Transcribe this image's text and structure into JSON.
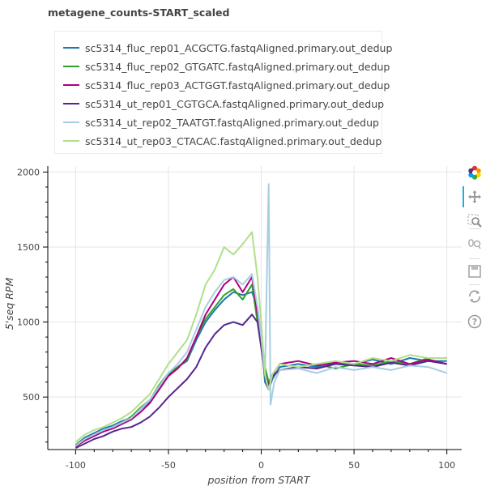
{
  "chart_data": {
    "type": "line",
    "title": "metagene_counts-START_scaled",
    "xlabel": "position from START",
    "ylabel": "5'seq RPM",
    "xlim": [
      -115,
      108
    ],
    "ylim": [
      150,
      2040
    ],
    "xticks": [
      -100,
      -50,
      0,
      50,
      100
    ],
    "yticks": [
      500,
      1000,
      1500,
      2000
    ],
    "grid": true,
    "legend_position": "top-left",
    "series": [
      {
        "name": "sc5314_fluc_rep01_ACGCTG.fastqAligned.primary.out_dedup",
        "color": "#1f78b4",
        "points": [
          [
            -100,
            180
          ],
          [
            -95,
            230
          ],
          [
            -90,
            260
          ],
          [
            -85,
            290
          ],
          [
            -80,
            310
          ],
          [
            -75,
            340
          ],
          [
            -70,
            360
          ],
          [
            -65,
            420
          ],
          [
            -60,
            470
          ],
          [
            -55,
            560
          ],
          [
            -50,
            650
          ],
          [
            -45,
            700
          ],
          [
            -40,
            740
          ],
          [
            -35,
            880
          ],
          [
            -30,
            1000
          ],
          [
            -25,
            1080
          ],
          [
            -20,
            1150
          ],
          [
            -15,
            1200
          ],
          [
            -10,
            1180
          ],
          [
            -5,
            1200
          ],
          [
            -2,
            1100
          ],
          [
            0,
            900
          ],
          [
            2,
            600
          ],
          [
            4,
            550
          ],
          [
            6,
            620
          ],
          [
            10,
            700
          ],
          [
            20,
            720
          ],
          [
            30,
            700
          ],
          [
            40,
            730
          ],
          [
            50,
            720
          ],
          [
            60,
            750
          ],
          [
            70,
            720
          ],
          [
            80,
            760
          ],
          [
            90,
            740
          ],
          [
            100,
            740
          ]
        ]
      },
      {
        "name": "sc5314_fluc_rep02_GTGATC.fastqAligned.primary.out_dedup",
        "color": "#33a02c",
        "points": [
          [
            -100,
            180
          ],
          [
            -95,
            220
          ],
          [
            -90,
            250
          ],
          [
            -85,
            280
          ],
          [
            -80,
            300
          ],
          [
            -75,
            330
          ],
          [
            -70,
            370
          ],
          [
            -65,
            430
          ],
          [
            -60,
            480
          ],
          [
            -55,
            580
          ],
          [
            -50,
            660
          ],
          [
            -45,
            700
          ],
          [
            -40,
            750
          ],
          [
            -35,
            900
          ],
          [
            -30,
            1020
          ],
          [
            -25,
            1100
          ],
          [
            -20,
            1180
          ],
          [
            -15,
            1220
          ],
          [
            -10,
            1150
          ],
          [
            -5,
            1250
          ],
          [
            -2,
            1000
          ],
          [
            0,
            900
          ],
          [
            2,
            700
          ],
          [
            4,
            600
          ],
          [
            6,
            650
          ],
          [
            10,
            680
          ],
          [
            20,
            700
          ],
          [
            30,
            720
          ],
          [
            40,
            690
          ],
          [
            50,
            720
          ],
          [
            60,
            710
          ],
          [
            70,
            740
          ],
          [
            80,
            720
          ],
          [
            90,
            760
          ],
          [
            100,
            760
          ]
        ]
      },
      {
        "name": "sc5314_fluc_rep03_ACTGGT.fastqAligned.primary.out_dedup",
        "color": "#ae017e",
        "points": [
          [
            -100,
            170
          ],
          [
            -95,
            210
          ],
          [
            -90,
            240
          ],
          [
            -85,
            270
          ],
          [
            -80,
            290
          ],
          [
            -75,
            320
          ],
          [
            -70,
            350
          ],
          [
            -65,
            400
          ],
          [
            -60,
            460
          ],
          [
            -55,
            550
          ],
          [
            -50,
            640
          ],
          [
            -45,
            690
          ],
          [
            -40,
            760
          ],
          [
            -35,
            900
          ],
          [
            -30,
            1050
          ],
          [
            -25,
            1150
          ],
          [
            -20,
            1250
          ],
          [
            -15,
            1300
          ],
          [
            -10,
            1200
          ],
          [
            -5,
            1300
          ],
          [
            -2,
            1050
          ],
          [
            0,
            920
          ],
          [
            2,
            650
          ],
          [
            4,
            580
          ],
          [
            6,
            650
          ],
          [
            10,
            720
          ],
          [
            20,
            740
          ],
          [
            30,
            710
          ],
          [
            40,
            730
          ],
          [
            50,
            740
          ],
          [
            60,
            720
          ],
          [
            70,
            760
          ],
          [
            80,
            720
          ],
          [
            90,
            750
          ],
          [
            100,
            720
          ]
        ]
      },
      {
        "name": "sc5314_ut_rep01_CGTGCA.fastqAligned.primary.out_dedup",
        "color": "#54278f",
        "points": [
          [
            -100,
            160
          ],
          [
            -95,
            190
          ],
          [
            -90,
            220
          ],
          [
            -85,
            240
          ],
          [
            -80,
            270
          ],
          [
            -75,
            290
          ],
          [
            -70,
            300
          ],
          [
            -65,
            330
          ],
          [
            -60,
            370
          ],
          [
            -55,
            430
          ],
          [
            -50,
            500
          ],
          [
            -45,
            560
          ],
          [
            -40,
            620
          ],
          [
            -35,
            700
          ],
          [
            -30,
            830
          ],
          [
            -25,
            920
          ],
          [
            -20,
            980
          ],
          [
            -15,
            1000
          ],
          [
            -10,
            980
          ],
          [
            -5,
            1050
          ],
          [
            -2,
            1000
          ],
          [
            0,
            830
          ],
          [
            2,
            650
          ],
          [
            4,
            560
          ],
          [
            6,
            640
          ],
          [
            10,
            680
          ],
          [
            20,
            700
          ],
          [
            30,
            690
          ],
          [
            40,
            720
          ],
          [
            50,
            710
          ],
          [
            60,
            700
          ],
          [
            70,
            730
          ],
          [
            80,
            710
          ],
          [
            90,
            740
          ],
          [
            100,
            720
          ]
        ]
      },
      {
        "name": "sc5314_ut_rep02_TAATGT.fastqAligned.primary.out_dedup",
        "color": "#a6cee3",
        "points": [
          [
            -100,
            175
          ],
          [
            -95,
            220
          ],
          [
            -90,
            250
          ],
          [
            -85,
            280
          ],
          [
            -80,
            300
          ],
          [
            -75,
            330
          ],
          [
            -70,
            360
          ],
          [
            -65,
            420
          ],
          [
            -60,
            480
          ],
          [
            -55,
            570
          ],
          [
            -50,
            660
          ],
          [
            -45,
            720
          ],
          [
            -40,
            800
          ],
          [
            -35,
            950
          ],
          [
            -30,
            1100
          ],
          [
            -25,
            1200
          ],
          [
            -20,
            1280
          ],
          [
            -15,
            1300
          ],
          [
            -10,
            1250
          ],
          [
            -5,
            1320
          ],
          [
            -2,
            1100
          ],
          [
            0,
            900
          ],
          [
            2,
            650
          ],
          [
            4,
            1920
          ],
          [
            5,
            450
          ],
          [
            7,
            600
          ],
          [
            10,
            680
          ],
          [
            20,
            690
          ],
          [
            30,
            660
          ],
          [
            40,
            700
          ],
          [
            50,
            680
          ],
          [
            60,
            700
          ],
          [
            70,
            680
          ],
          [
            80,
            710
          ],
          [
            90,
            700
          ],
          [
            100,
            660
          ]
        ]
      },
      {
        "name": "sc5314_ut_rep03_CTACAC.fastqAligned.primary.out_dedup",
        "color": "#b2df8a",
        "points": [
          [
            -100,
            200
          ],
          [
            -95,
            250
          ],
          [
            -90,
            280
          ],
          [
            -85,
            300
          ],
          [
            -80,
            330
          ],
          [
            -75,
            360
          ],
          [
            -70,
            400
          ],
          [
            -65,
            460
          ],
          [
            -60,
            520
          ],
          [
            -55,
            620
          ],
          [
            -50,
            720
          ],
          [
            -45,
            800
          ],
          [
            -40,
            880
          ],
          [
            -35,
            1050
          ],
          [
            -30,
            1250
          ],
          [
            -25,
            1350
          ],
          [
            -20,
            1500
          ],
          [
            -15,
            1450
          ],
          [
            -10,
            1520
          ],
          [
            -5,
            1600
          ],
          [
            -2,
            1300
          ],
          [
            0,
            1000
          ],
          [
            2,
            650
          ],
          [
            4,
            550
          ],
          [
            6,
            650
          ],
          [
            10,
            720
          ],
          [
            20,
            700
          ],
          [
            30,
            720
          ],
          [
            40,
            740
          ],
          [
            50,
            720
          ],
          [
            60,
            760
          ],
          [
            70,
            740
          ],
          [
            80,
            780
          ],
          [
            90,
            760
          ],
          [
            100,
            760
          ]
        ]
      }
    ]
  },
  "toolbar": {
    "tools": [
      "bokeh-logo-icon",
      "pan-icon",
      "box-zoom-icon",
      "wheel-zoom-icon",
      "save-icon",
      "reset-icon",
      "help-icon"
    ]
  }
}
